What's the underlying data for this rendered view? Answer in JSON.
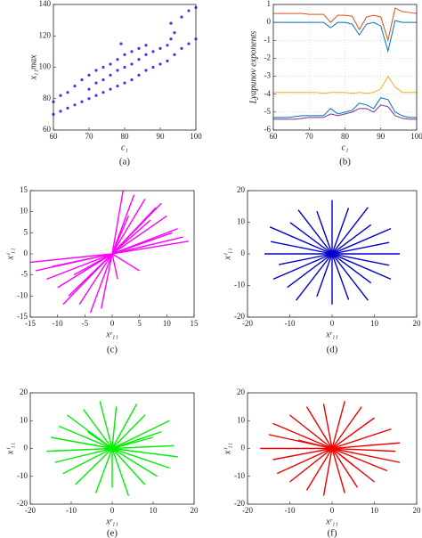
{
  "chart_data": [
    {
      "type": "scatter",
      "caption": "(a)",
      "xlabel": "c₁",
      "ylabel": "x₁₁max",
      "color": "#3a3aff",
      "xlim": [
        60,
        100
      ],
      "ylim": [
        60,
        140
      ],
      "xticks": [
        60,
        70,
        80,
        90,
        100
      ],
      "yticks": [
        60,
        80,
        100,
        120,
        140
      ],
      "x": [
        60,
        60,
        62,
        62,
        64,
        64,
        66,
        66,
        68,
        68,
        70,
        70,
        70,
        72,
        72,
        72,
        74,
        74,
        74,
        76,
        76,
        76,
        78,
        78,
        78,
        79,
        80,
        80,
        80,
        82,
        82,
        82,
        84,
        84,
        84,
        86,
        86,
        86,
        88,
        88,
        90,
        90,
        92,
        92,
        93,
        93,
        94,
        94,
        96,
        96,
        98,
        98,
        100,
        100
      ],
      "values": [
        70,
        78,
        72,
        82,
        74,
        84,
        76,
        88,
        78,
        92,
        80,
        86,
        95,
        82,
        90,
        98,
        84,
        92,
        100,
        86,
        95,
        102,
        88,
        98,
        105,
        115,
        90,
        100,
        108,
        92,
        102,
        110,
        95,
        105,
        112,
        98,
        108,
        114,
        100,
        110,
        102,
        112,
        104,
        114,
        118,
        128,
        108,
        122,
        112,
        132,
        115,
        136,
        118,
        138
      ]
    },
    {
      "type": "line",
      "caption": "(b)",
      "xlabel": "c₁",
      "ylabel": "Lyapunov exponents",
      "grid": true,
      "xlim": [
        60,
        100
      ],
      "ylim": [
        -6,
        1
      ],
      "xticks": [
        60,
        70,
        80,
        90,
        100
      ],
      "yticks": [
        -6,
        -5,
        -4,
        -3,
        -2,
        -1,
        0,
        1
      ],
      "x": [
        60,
        62,
        64,
        66,
        68,
        70,
        72,
        74,
        76,
        78,
        80,
        82,
        84,
        86,
        88,
        90,
        92,
        94,
        96,
        98,
        100
      ],
      "series": [
        {
          "color": "#d95319",
          "values": [
            0.5,
            0.5,
            0.5,
            0.5,
            0.5,
            0.45,
            0.45,
            0.45,
            0.0,
            0.4,
            0.4,
            0.35,
            -0.4,
            0.3,
            0.4,
            0.3,
            -1.0,
            0.8,
            0.6,
            0.55,
            0.5
          ]
        },
        {
          "color": "#0072bd",
          "values": [
            0,
            0,
            0,
            0,
            0,
            0,
            0,
            0,
            -0.3,
            0,
            0,
            -0.1,
            -0.7,
            -0.1,
            0,
            -0.2,
            -1.6,
            0.1,
            0,
            0,
            0
          ]
        },
        {
          "color": "#edb120",
          "values": [
            -3.9,
            -3.9,
            -3.9,
            -3.9,
            -3.9,
            -3.9,
            -3.9,
            -3.95,
            -3.9,
            -3.9,
            -3.9,
            -3.95,
            -3.9,
            -3.95,
            -3.9,
            -3.7,
            -3.0,
            -3.6,
            -3.9,
            -3.9,
            -3.9
          ]
        },
        {
          "color": "#0072bd",
          "values": [
            -5.3,
            -5.3,
            -5.3,
            -5.25,
            -5.2,
            -5.2,
            -5.2,
            -5.2,
            -4.8,
            -5.1,
            -5.0,
            -4.9,
            -4.5,
            -4.6,
            -4.8,
            -4.2,
            -4.3,
            -5.0,
            -5.2,
            -5.3,
            -5.3
          ]
        },
        {
          "color": "#7e2f8e",
          "values": [
            -5.4,
            -5.4,
            -5.4,
            -5.4,
            -5.35,
            -5.3,
            -5.3,
            -5.3,
            -5.1,
            -5.2,
            -5.1,
            -5.0,
            -4.8,
            -4.8,
            -5.0,
            -4.6,
            -4.7,
            -5.2,
            -5.35,
            -5.4,
            -5.4
          ]
        }
      ]
    },
    {
      "type": "rays",
      "caption": "(c)",
      "xlabel": "xʳ₁₁",
      "ylabel": "xⁱ₁₁",
      "color": "#ff00ff",
      "xlim": [
        -15,
        15
      ],
      "ylim": [
        -15,
        15
      ],
      "xticks": [
        -15,
        -10,
        -5,
        0,
        5,
        10,
        15
      ],
      "yticks": [
        -15,
        -10,
        -5,
        0,
        5,
        10,
        15
      ],
      "x": [
        2,
        4,
        6,
        8,
        10,
        12,
        13,
        14,
        9,
        7,
        11,
        3,
        -15,
        -14,
        -12,
        -10,
        -8,
        -6,
        -4,
        -2,
        -11,
        -9,
        5,
        1,
        -7
      ],
      "values": [
        15,
        14,
        13,
        11,
        9,
        6,
        4,
        3,
        12,
        8,
        5,
        9,
        -2,
        -4,
        -6,
        -8,
        -10,
        -12,
        -14,
        -13,
        -3,
        -12,
        -4,
        -6,
        -5
      ]
    },
    {
      "type": "rays",
      "caption": "(d)",
      "xlabel": "xʳ₁₁",
      "ylabel": "xⁱ₁₁",
      "color": "#0000cc",
      "xlim": [
        -20,
        20
      ],
      "ylim": [
        -20,
        20
      ],
      "xticks": [
        -20,
        -10,
        0,
        10,
        20
      ],
      "yticks": [
        -20,
        -10,
        0,
        10,
        20
      ],
      "x": [
        16,
        13.5,
        13.9,
        9.2,
        8.5,
        3.9,
        0,
        -3.6,
        -8,
        -9.9,
        -14.7,
        -14.5,
        -16,
        -12.6,
        -13.9,
        -10.6,
        -8.5,
        -3.6,
        0,
        3.9,
        8.5,
        9.2,
        13.9,
        13.5
      ],
      "values": [
        0,
        3.6,
        8,
        9.2,
        14.7,
        14.5,
        17,
        13.5,
        13.9,
        9.9,
        8.5,
        3.9,
        0,
        -3.4,
        -8,
        -10.6,
        -14.7,
        -13.5,
        -16,
        -14.5,
        -14.7,
        -9.2,
        -8,
        -3.6
      ]
    },
    {
      "type": "rays",
      "caption": "(e)",
      "xlabel": "xʳ₁₁",
      "ylabel": "xⁱ₁₁",
      "color": "#00ee00",
      "xlim": [
        -20,
        20
      ],
      "ylim": [
        -20,
        20
      ],
      "xticks": [
        -20,
        -10,
        0,
        10,
        20
      ],
      "yticks": [
        -20,
        -10,
        0,
        10,
        20
      ],
      "x": [
        15,
        12,
        14,
        8,
        6,
        1,
        -3,
        -7,
        -11,
        -13,
        -15,
        -16,
        -14,
        -12,
        -9,
        -4,
        0,
        4,
        8,
        11,
        14,
        16,
        10,
        -6
      ],
      "values": [
        1,
        6,
        10,
        12,
        16,
        15,
        17,
        14,
        12,
        8,
        4,
        -1,
        -5,
        -9,
        -13,
        -16,
        -14,
        -17,
        -13,
        -10,
        -7,
        -3,
        4,
        6
      ]
    },
    {
      "type": "rays",
      "caption": "(f)",
      "xlabel": "xʳ₁₁",
      "ylabel": "xⁱ₁₁",
      "color": "#ee0000",
      "xlim": [
        -20,
        20
      ],
      "ylim": [
        -20,
        20
      ],
      "xticks": [
        -20,
        -10,
        0,
        10,
        20
      ],
      "yticks": [
        -20,
        -10,
        0,
        10,
        20
      ],
      "x": [
        16,
        14,
        10,
        7,
        3,
        -2,
        -6,
        -10,
        -14,
        -15,
        -17,
        -14,
        -13,
        -10,
        -6,
        -2,
        3,
        6,
        10,
        13,
        16,
        15,
        -8,
        5
      ],
      "values": [
        2,
        7,
        11,
        15,
        17,
        16,
        15,
        12,
        9,
        5,
        0,
        -4,
        -9,
        -12,
        -15,
        -17,
        -16,
        -14,
        -12,
        -8,
        -5,
        -1,
        3,
        -6
      ]
    }
  ]
}
